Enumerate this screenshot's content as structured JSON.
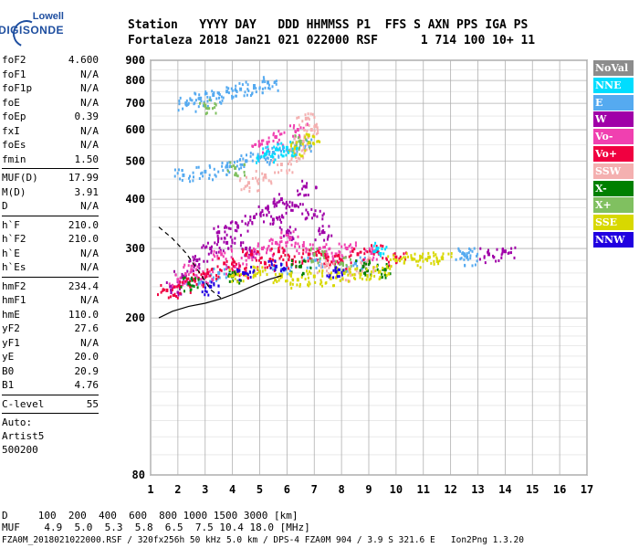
{
  "logo": {
    "line1": "Lowell",
    "line2": "DIGISONDE"
  },
  "header": {
    "line1": "Station   YYYY DAY   DDD HHMMSS P1  FFS S AXN PPS IGA PS",
    "line2": "Fortaleza 2018 Jan21 021 022000 RSF      1 714 100 10+ 11"
  },
  "params": {
    "group1": [
      {
        "k": "foF2",
        "v": "4.600"
      },
      {
        "k": "foF1",
        "v": "N/A"
      },
      {
        "k": "foF1p",
        "v": "N/A"
      },
      {
        "k": "foE",
        "v": "N/A"
      },
      {
        "k": "foEp",
        "v": "0.39"
      },
      {
        "k": "fxI",
        "v": "N/A"
      },
      {
        "k": "foEs",
        "v": "N/A"
      },
      {
        "k": "fmin",
        "v": "1.50"
      }
    ],
    "group2": [
      {
        "k": "MUF(D)",
        "v": "17.99"
      },
      {
        "k": "M(D)",
        "v": "3.91"
      },
      {
        "k": "D",
        "v": "N/A"
      }
    ],
    "group3": [
      {
        "k": "h`F",
        "v": "210.0"
      },
      {
        "k": "h`F2",
        "v": "210.0"
      },
      {
        "k": "h`E",
        "v": "N/A"
      },
      {
        "k": "h`Es",
        "v": "N/A"
      }
    ],
    "group4": [
      {
        "k": "hmF2",
        "v": "234.4"
      },
      {
        "k": "hmF1",
        "v": "N/A"
      },
      {
        "k": "hmE",
        "v": "110.0"
      },
      {
        "k": "yF2",
        "v": "27.6"
      },
      {
        "k": "yF1",
        "v": "N/A"
      },
      {
        "k": "yE",
        "v": "20.0"
      },
      {
        "k": "B0",
        "v": "20.9"
      },
      {
        "k": "B1",
        "v": "4.76"
      }
    ],
    "clevel": {
      "k": "C-level",
      "v": "55"
    },
    "auto": [
      "Auto:",
      "Artist5",
      "500200"
    ]
  },
  "footer": {
    "line1": "D     100  200  400  600  800 1000 1500 3000 [km]",
    "line2": "MUF    4.9  5.0  5.3  5.8  6.5  7.5 10.4 18.0 [MHz]",
    "line3": "FZA0M_2018021022000.RSF / 320fx256h 50 kHz 5.0 km / DPS-4 FZA0M 904 / 3.9 S 321.6 E   Ion2Png 1.3.20"
  },
  "legend": [
    {
      "label": "NoVal",
      "color": "#8c8c8c"
    },
    {
      "label": "NNE",
      "color": "#00ddff"
    },
    {
      "label": "E",
      "color": "#55aaf0"
    },
    {
      "label": "W",
      "color": "#a000a8"
    },
    {
      "label": "Vo-",
      "color": "#f040b0"
    },
    {
      "label": "Vo+",
      "color": "#f00040"
    },
    {
      "label": "SSW",
      "color": "#f4b0b0"
    },
    {
      "label": "X-",
      "color": "#008000"
    },
    {
      "label": "X+",
      "color": "#80c060"
    },
    {
      "label": "SSE",
      "color": "#d8d800"
    },
    {
      "label": "NNW",
      "color": "#2000e0"
    }
  ],
  "chart_data": {
    "type": "scatter",
    "title": "",
    "xlabel": "",
    "ylabel": "",
    "x_range": [
      1,
      17
    ],
    "y_range": [
      80,
      900
    ],
    "x_ticks": [
      1,
      2,
      3,
      4,
      5,
      6,
      7,
      8,
      9,
      10,
      11,
      12,
      13,
      14,
      15,
      16,
      17
    ],
    "y_ticks": [
      80,
      200,
      300,
      400,
      500,
      600,
      700,
      800,
      900
    ],
    "grid": true,
    "y_scale": "log",
    "legend_position": "right",
    "series": [
      {
        "name": "E",
        "points": [
          [
            2.3,
            700
          ],
          [
            2.8,
            720
          ],
          [
            3.3,
            735
          ],
          [
            3.8,
            750
          ],
          [
            4.3,
            760
          ],
          [
            4.8,
            775
          ],
          [
            5.3,
            790
          ],
          [
            2.2,
            460
          ],
          [
            3.0,
            470
          ],
          [
            3.8,
            485
          ],
          [
            4.5,
            500
          ],
          [
            5.0,
            510
          ],
          [
            5.5,
            525
          ],
          [
            6.0,
            535
          ],
          [
            6.5,
            550
          ],
          [
            2.6,
            250
          ],
          [
            3.5,
            260
          ],
          [
            5.8,
            265
          ],
          [
            6.9,
            280
          ],
          [
            8.5,
            275
          ],
          [
            12.5,
            290
          ],
          [
            12.6,
            285
          ]
        ]
      },
      {
        "name": "W",
        "points": [
          [
            1.8,
            240
          ],
          [
            2.2,
            255
          ],
          [
            2.7,
            280
          ],
          [
            3.2,
            300
          ],
          [
            3.5,
            330
          ],
          [
            4.2,
            340
          ],
          [
            4.8,
            360
          ],
          [
            5.3,
            380
          ],
          [
            5.8,
            400
          ],
          [
            6.3,
            385
          ],
          [
            6.7,
            430
          ],
          [
            7.0,
            365
          ],
          [
            5.5,
            355
          ],
          [
            3.8,
            310
          ],
          [
            4.5,
            300
          ],
          [
            6.0,
            330
          ],
          [
            7.3,
            330
          ],
          [
            13.4,
            290
          ],
          [
            14.0,
            295
          ]
        ]
      },
      {
        "name": "Vo-",
        "points": [
          [
            2.0,
            250
          ],
          [
            2.5,
            265
          ],
          [
            3.0,
            255
          ],
          [
            3.6,
            290
          ],
          [
            4.1,
            270
          ],
          [
            4.6,
            285
          ],
          [
            5.1,
            300
          ],
          [
            5.6,
            310
          ],
          [
            6.1,
            320
          ],
          [
            6.6,
            305
          ],
          [
            7.2,
            300
          ],
          [
            7.8,
            290
          ],
          [
            8.2,
            300
          ],
          [
            9.1,
            292
          ],
          [
            5.0,
            550
          ],
          [
            5.6,
            575
          ],
          [
            6.4,
            600
          ]
        ]
      },
      {
        "name": "Vo+",
        "points": [
          [
            1.6,
            235
          ],
          [
            2.1,
            240
          ],
          [
            2.6,
            250
          ],
          [
            3.1,
            260
          ],
          [
            3.7,
            275
          ],
          [
            4.2,
            265
          ],
          [
            4.7,
            290
          ],
          [
            5.2,
            275
          ],
          [
            5.7,
            295
          ],
          [
            6.2,
            280
          ],
          [
            6.8,
            290
          ],
          [
            7.4,
            285
          ],
          [
            8.0,
            280
          ],
          [
            8.6,
            290
          ],
          [
            9.3,
            295
          ],
          [
            10.0,
            285
          ]
        ]
      },
      {
        "name": "SSW",
        "points": [
          [
            4.6,
            440
          ],
          [
            5.2,
            460
          ],
          [
            5.8,
            490
          ],
          [
            6.3,
            520
          ],
          [
            6.6,
            560
          ],
          [
            6.9,
            600
          ],
          [
            6.7,
            640
          ],
          [
            7.4,
            270
          ],
          [
            8.3,
            260
          ],
          [
            9.0,
            275
          ]
        ]
      },
      {
        "name": "X-",
        "points": [
          [
            2.4,
            245
          ],
          [
            4.0,
            255
          ],
          [
            6.5,
            270
          ],
          [
            8.8,
            270
          ],
          [
            9.6,
            265
          ]
        ]
      },
      {
        "name": "X+",
        "points": [
          [
            3.0,
            690
          ],
          [
            4.1,
            480
          ],
          [
            6.5,
            560
          ],
          [
            7.0,
            290
          ],
          [
            8.0,
            275
          ]
        ]
      },
      {
        "name": "SSE",
        "points": [
          [
            4.2,
            258
          ],
          [
            5.0,
            262
          ],
          [
            5.8,
            255
          ],
          [
            6.4,
            250
          ],
          [
            7.0,
            255
          ],
          [
            7.6,
            252
          ],
          [
            8.1,
            260
          ],
          [
            8.7,
            258
          ],
          [
            9.4,
            262
          ],
          [
            10.0,
            280
          ],
          [
            10.6,
            282
          ],
          [
            11.2,
            285
          ],
          [
            11.7,
            283
          ],
          [
            6.8,
            580
          ],
          [
            6.3,
            540
          ]
        ]
      },
      {
        "name": "NNE",
        "points": [
          [
            5.2,
            520
          ],
          [
            5.6,
            535
          ],
          [
            6.0,
            540
          ],
          [
            9.3,
            300
          ]
        ]
      },
      {
        "name": "NNW",
        "points": [
          [
            3.2,
            240
          ],
          [
            4.4,
            260
          ],
          [
            5.6,
            270
          ],
          [
            7.8,
            262
          ]
        ]
      }
    ],
    "trace_lines": [
      {
        "style": "solid",
        "points": [
          [
            1.3,
            200
          ],
          [
            1.8,
            208
          ],
          [
            2.4,
            214
          ],
          [
            3.0,
            218
          ],
          [
            3.6,
            224
          ],
          [
            4.2,
            232
          ],
          [
            4.8,
            242
          ],
          [
            5.3,
            250
          ],
          [
            5.8,
            256
          ]
        ]
      },
      {
        "style": "dashed",
        "points": [
          [
            1.3,
            340
          ],
          [
            1.8,
            318
          ],
          [
            2.3,
            292
          ],
          [
            2.8,
            260
          ],
          [
            3.2,
            236
          ],
          [
            3.6,
            224
          ]
        ]
      }
    ]
  }
}
